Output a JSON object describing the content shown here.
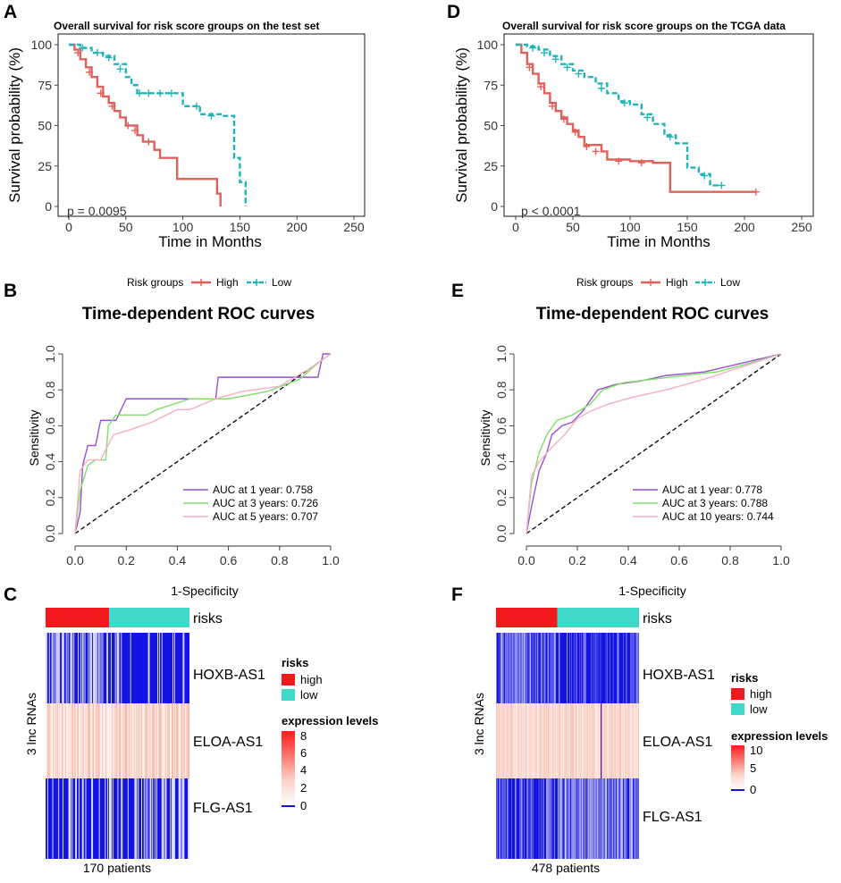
{
  "colors": {
    "high": "#E0605A",
    "low": "#1FB5B8",
    "roc_1": "#9B4FCF",
    "roc_2": "#7FE06A",
    "roc_3": "#F2AFC7",
    "heat_high": "#FF0000",
    "heat_low": "#1414E0",
    "risk_high": "#F2181C",
    "risk_low": "#3FD9C9"
  },
  "panels": {
    "A": {
      "letter": "A",
      "title": "Overall survival for risk score groups on the test set",
      "pvalue": "p = 0.0095",
      "xlabel": "Time in Months",
      "ylabel": "Survival probability (%)",
      "xticks": [
        "0",
        "50",
        "100",
        "150",
        "200",
        "250"
      ],
      "yticks": [
        "0",
        "25",
        "50",
        "75",
        "100"
      ],
      "legend": {
        "title": "Risk groups",
        "high": "High",
        "low": "Low"
      }
    },
    "D": {
      "letter": "D",
      "title": "Overall survival for risk score groups on the TCGA data",
      "pvalue": "p < 0.0001",
      "xlabel": "Time in Months",
      "ylabel": "Survival probability (%)",
      "xticks": [
        "0",
        "50",
        "100",
        "150",
        "200",
        "250"
      ],
      "yticks": [
        "0",
        "25",
        "50",
        "75",
        "100"
      ],
      "legend": {
        "title": "Risk groups",
        "high": "High",
        "low": "Low"
      }
    },
    "B": {
      "letter": "B",
      "title": "Time-dependent ROC curves",
      "xlabel": "1-Specificity",
      "ylabel": "Sensitivity",
      "xticks": [
        "0.0",
        "0.2",
        "0.4",
        "0.6",
        "0.8",
        "1.0"
      ],
      "yticks": [
        "0.0",
        "0.2",
        "0.4",
        "0.6",
        "0.8",
        "1.0"
      ],
      "auc": [
        "AUC at 1 year: 0.758",
        "AUC at 3 years: 0.726",
        "AUC at 5 years: 0.707"
      ]
    },
    "E": {
      "letter": "E",
      "title": "Time-dependent ROC curves",
      "xlabel": "1-Specificity",
      "ylabel": "Sensitivity",
      "xticks": [
        "0.0",
        "0.2",
        "0.4",
        "0.6",
        "0.8",
        "1.0"
      ],
      "yticks": [
        "0.0",
        "0.2",
        "0.4",
        "0.6",
        "0.8",
        "1.0"
      ],
      "auc": [
        "AUC at 1 year: 0.778",
        "AUC at 3 years: 0.788",
        "AUC at 10 years: 0.744"
      ]
    },
    "C": {
      "letter": "C",
      "risks_label": "risks",
      "rows": [
        "HOXB-AS1",
        "ELOA-AS1",
        "FLG-AS1"
      ],
      "ylabel": "3 lnc RNAs",
      "patients": "170 patients",
      "legend": {
        "risks_title": "risks",
        "high": "high",
        "low": "low",
        "expr_title": "expression levels",
        "ticks": [
          "8",
          "6",
          "4",
          "2",
          "0"
        ]
      }
    },
    "F": {
      "letter": "F",
      "risks_label": "risks",
      "rows": [
        "HOXB-AS1",
        "ELOA-AS1",
        "FLG-AS1"
      ],
      "ylabel": "3 lnc RNAs",
      "patients": "478 patients",
      "legend": {
        "risks_title": "risks",
        "high": "high",
        "low": "low",
        "expr_title": "expression levels",
        "ticks": [
          "10",
          "5",
          "0"
        ]
      }
    }
  },
  "chart_data": [
    {
      "id": "A",
      "type": "line",
      "kind": "kaplan-meier",
      "title": "Overall survival for risk score groups on the test set",
      "xlabel": "Time in Months",
      "ylabel": "Survival probability (%)",
      "xlim": [
        0,
        250
      ],
      "ylim": [
        0,
        100
      ],
      "series": [
        {
          "name": "High",
          "x": [
            0,
            5,
            10,
            15,
            20,
            25,
            30,
            35,
            40,
            45,
            50,
            55,
            60,
            65,
            75,
            80,
            90,
            95,
            100,
            120,
            130,
            133
          ],
          "y": [
            100,
            97,
            91,
            86,
            80,
            74,
            68,
            64,
            59,
            55,
            50,
            50,
            44,
            40,
            35,
            30,
            30,
            17,
            17,
            17,
            8,
            0
          ],
          "censor": [
            [
              8,
              95
            ],
            [
              18,
              83
            ],
            [
              28,
              70
            ],
            [
              38,
              62
            ],
            [
              52,
              50
            ],
            [
              58,
              47
            ],
            [
              70,
              40
            ]
          ]
        },
        {
          "name": "Low",
          "x": [
            0,
            10,
            20,
            30,
            40,
            50,
            55,
            60,
            75,
            95,
            100,
            110,
            115,
            135,
            145,
            150,
            155
          ],
          "y": [
            100,
            98,
            95,
            93,
            88,
            80,
            75,
            70,
            70,
            70,
            62,
            62,
            57,
            56,
            30,
            15,
            0
          ],
          "censor": [
            [
              12,
              98
            ],
            [
              25,
              95
            ],
            [
              35,
              92
            ],
            [
              45,
              85
            ],
            [
              62,
              70
            ],
            [
              70,
              70
            ],
            [
              80,
              70
            ],
            [
              90,
              70
            ],
            [
              112,
              62
            ],
            [
              125,
              56
            ]
          ]
        }
      ],
      "annotation": "p = 0.0095"
    },
    {
      "id": "D",
      "type": "line",
      "kind": "kaplan-meier",
      "title": "Overall survival for risk score groups on the TCGA data",
      "xlabel": "Time in Months",
      "ylabel": "Survival probability (%)",
      "xlim": [
        0,
        250
      ],
      "ylim": [
        0,
        100
      ],
      "series": [
        {
          "name": "High",
          "x": [
            0,
            5,
            10,
            15,
            20,
            25,
            30,
            35,
            40,
            45,
            50,
            55,
            60,
            75,
            80,
            100,
            120,
            130,
            135,
            210
          ],
          "y": [
            100,
            95,
            88,
            82,
            76,
            70,
            64,
            59,
            55,
            51,
            47,
            43,
            38,
            34,
            29,
            28,
            27,
            27,
            9,
            9
          ],
          "censor": [
            [
              12,
              86
            ],
            [
              22,
              74
            ],
            [
              32,
              62
            ],
            [
              42,
              54
            ],
            [
              52,
              46
            ],
            [
              62,
              37
            ],
            [
              70,
              34
            ],
            [
              90,
              28
            ],
            [
              110,
              27
            ],
            [
              210,
              9
            ]
          ]
        },
        {
          "name": "Low",
          "x": [
            0,
            10,
            20,
            30,
            40,
            50,
            60,
            70,
            80,
            90,
            100,
            110,
            120,
            130,
            140,
            150,
            160,
            170,
            180
          ],
          "y": [
            100,
            99,
            97,
            93,
            88,
            84,
            80,
            76,
            70,
            65,
            63,
            57,
            51,
            44,
            39,
            24,
            20,
            13,
            13
          ],
          "censor": [
            [
              15,
              98
            ],
            [
              25,
              95
            ],
            [
              35,
              91
            ],
            [
              45,
              86
            ],
            [
              55,
              82
            ],
            [
              75,
              73
            ],
            [
              95,
              64
            ],
            [
              115,
              55
            ],
            [
              135,
              43
            ],
            [
              165,
              19
            ],
            [
              180,
              13
            ]
          ]
        }
      ],
      "annotation": "p < 0.0001"
    },
    {
      "id": "B",
      "type": "line",
      "kind": "roc",
      "title": "Time-dependent ROC curves",
      "xlabel": "1-Specificity",
      "ylabel": "Sensitivity",
      "xlim": [
        0,
        1
      ],
      "ylim": [
        0,
        1
      ],
      "series": [
        {
          "name": "AUC at 1 year: 0.758",
          "x": [
            0,
            0.02,
            0.03,
            0.05,
            0.08,
            0.1,
            0.13,
            0.16,
            0.2,
            0.28,
            0.4,
            0.55,
            0.56,
            0.75,
            0.95,
            0.97,
            0.98,
            1.0
          ],
          "y": [
            0,
            0.12,
            0.38,
            0.49,
            0.49,
            0.63,
            0.63,
            0.63,
            0.75,
            0.75,
            0.75,
            0.75,
            0.87,
            0.87,
            0.87,
            1.0,
            1.0,
            1.0
          ]
        },
        {
          "name": "AUC at 3 years: 0.726",
          "x": [
            0,
            0.02,
            0.05,
            0.08,
            0.12,
            0.13,
            0.16,
            0.28,
            0.32,
            0.45,
            0.6,
            0.75,
            0.88,
            0.95,
            1.0
          ],
          "y": [
            0,
            0.24,
            0.38,
            0.41,
            0.41,
            0.6,
            0.66,
            0.66,
            0.69,
            0.75,
            0.75,
            0.79,
            0.86,
            0.95,
            1.0
          ]
        },
        {
          "name": "AUC at 5 years: 0.707",
          "x": [
            0,
            0.02,
            0.05,
            0.1,
            0.15,
            0.22,
            0.3,
            0.4,
            0.45,
            0.55,
            0.65,
            0.8,
            0.92,
            1.0
          ],
          "y": [
            0,
            0.35,
            0.41,
            0.41,
            0.55,
            0.58,
            0.62,
            0.69,
            0.69,
            0.75,
            0.79,
            0.82,
            0.92,
            1.0
          ]
        }
      ]
    },
    {
      "id": "E",
      "type": "line",
      "kind": "roc",
      "title": "Time-dependent ROC curves",
      "xlabel": "1-Specificity",
      "ylabel": "Sensitivity",
      "xlim": [
        0,
        1
      ],
      "ylim": [
        0,
        1
      ],
      "series": [
        {
          "name": "AUC at 1 year: 0.778",
          "x": [
            0,
            0.02,
            0.05,
            0.08,
            0.1,
            0.14,
            0.18,
            0.22,
            0.28,
            0.35,
            0.45,
            0.55,
            0.7,
            0.85,
            1.0
          ],
          "y": [
            0,
            0.15,
            0.35,
            0.45,
            0.55,
            0.6,
            0.62,
            0.68,
            0.8,
            0.83,
            0.85,
            0.88,
            0.9,
            0.95,
            1.0
          ]
        },
        {
          "name": "AUC at 3 years: 0.788",
          "x": [
            0,
            0.02,
            0.05,
            0.08,
            0.12,
            0.18,
            0.25,
            0.3,
            0.38,
            0.5,
            0.62,
            0.75,
            0.88,
            1.0
          ],
          "y": [
            0,
            0.28,
            0.45,
            0.55,
            0.63,
            0.66,
            0.72,
            0.8,
            0.84,
            0.86,
            0.88,
            0.9,
            0.95,
            1.0
          ]
        },
        {
          "name": "AUC at 10 years: 0.744",
          "x": [
            0,
            0.02,
            0.05,
            0.1,
            0.15,
            0.2,
            0.25,
            0.32,
            0.42,
            0.55,
            0.7,
            0.85,
            1.0
          ],
          "y": [
            0,
            0.32,
            0.4,
            0.48,
            0.55,
            0.64,
            0.68,
            0.72,
            0.76,
            0.8,
            0.86,
            0.93,
            1.0
          ]
        }
      ]
    },
    {
      "id": "C",
      "type": "heatmap",
      "rows": [
        "HOXB-AS1",
        "ELOA-AS1",
        "FLG-AS1"
      ],
      "patients": 170,
      "risk_split": [
        75,
        95
      ],
      "legend_range": [
        0,
        8
      ]
    },
    {
      "id": "F",
      "type": "heatmap",
      "rows": [
        "HOXB-AS1",
        "ELOA-AS1",
        "FLG-AS1"
      ],
      "patients": 478,
      "risk_split": [
        205,
        273
      ],
      "legend_range": [
        0,
        10
      ]
    }
  ]
}
